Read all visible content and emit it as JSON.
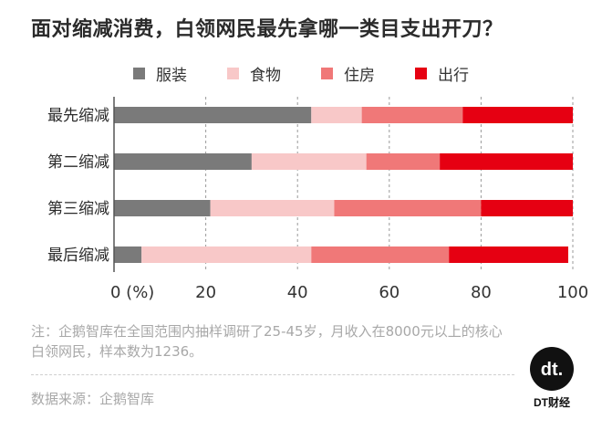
{
  "title": "面对缩减消费，白领网民最先拿哪一类目支出开刀？",
  "note": "注：企鹅智库在全国范围内抽样调研了25-45岁，月收入在8000元以上的核心白领网民，样本数为1236。",
  "source": "数据来源：企鹅智库",
  "logo": {
    "text": "DT财经",
    "mark": "dt."
  },
  "colors": {
    "服装": "#7a7a7a",
    "食物": "#f8c8c8",
    "住房": "#f07878",
    "出行": "#e60012"
  },
  "chart_data": {
    "type": "bar",
    "orientation": "horizontal",
    "stacked": true,
    "categories": [
      "最先缩减",
      "第二缩减",
      "第三缩减",
      "最后缩减"
    ],
    "series": [
      {
        "name": "服装",
        "values": [
          43,
          30,
          21,
          6
        ]
      },
      {
        "name": "食物",
        "values": [
          11,
          25,
          27,
          37
        ]
      },
      {
        "name": "住房",
        "values": [
          22,
          16,
          32,
          30
        ]
      },
      {
        "name": "出行",
        "values": [
          24,
          29,
          20,
          26
        ]
      }
    ],
    "xlim": [
      0,
      100
    ],
    "xticks": [
      "0 (%)",
      "20",
      "40",
      "60",
      "80",
      "100"
    ],
    "xtick_values": [
      0,
      20,
      40,
      60,
      80,
      100
    ],
    "grid": true,
    "legend_position": "top"
  }
}
